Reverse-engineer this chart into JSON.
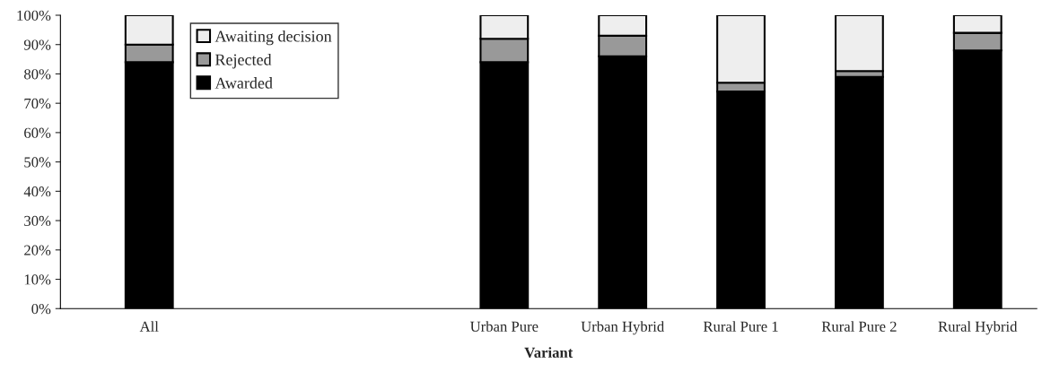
{
  "chart_data": {
    "type": "bar",
    "stacked": true,
    "xlabel": "Variant",
    "categories": [
      "All",
      null,
      null,
      "Urban Pure",
      "Urban Hybrid",
      "Rural Pure 1",
      "Rural Pure 2",
      "Rural Hybrid"
    ],
    "series": [
      {
        "name": "Awarded",
        "color": "#000000",
        "values": [
          84,
          null,
          null,
          84,
          86,
          74,
          79,
          88
        ]
      },
      {
        "name": "Rejected",
        "color": "#999999",
        "values": [
          6,
          null,
          null,
          8,
          7,
          3,
          2,
          6
        ]
      },
      {
        "name": "Awaiting decision",
        "color": "#eeeeee",
        "values": [
          10,
          null,
          null,
          8,
          7,
          23,
          19,
          6
        ]
      }
    ],
    "ylim": [
      0,
      100
    ],
    "yticks": [
      {
        "value": 0,
        "label": "0%"
      },
      {
        "value": 10,
        "label": "10%"
      },
      {
        "value": 20,
        "label": "20%"
      },
      {
        "value": 30,
        "label": "30%"
      },
      {
        "value": 40,
        "label": "40%"
      },
      {
        "value": 50,
        "label": "50%"
      },
      {
        "value": 60,
        "label": "60%"
      },
      {
        "value": 70,
        "label": "70%"
      },
      {
        "value": 80,
        "label": "80%"
      },
      {
        "value": 90,
        "label": "90%"
      },
      {
        "value": 100,
        "label": "100%"
      }
    ],
    "legend": "top left",
    "grid": false
  }
}
